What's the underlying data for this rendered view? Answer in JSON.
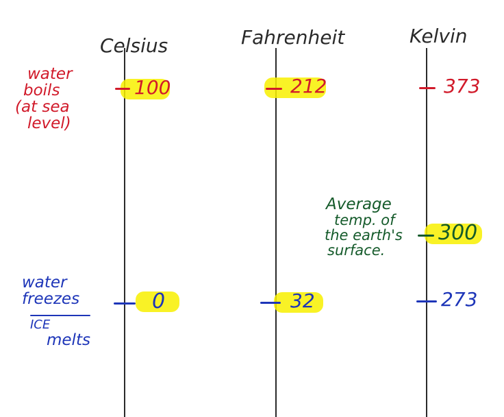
{
  "colors": {
    "ink": "#2a2a2a",
    "red": "#d11a2a",
    "blue": "#1d35b8",
    "green": "#145a2a",
    "highlight": "#f8f000"
  },
  "scales": [
    {
      "id": "celsius",
      "title": "Celsius",
      "boil": "100",
      "freeze": "0"
    },
    {
      "id": "fahrenheit",
      "title": "Fahrenheit",
      "boil": "212",
      "freeze": "32"
    },
    {
      "id": "kelvin",
      "title": "Kelvin",
      "boil": "373",
      "earth": "300",
      "freeze": "273"
    }
  ],
  "notes": {
    "boil": [
      "water",
      "boils",
      "(at sea",
      "level)"
    ],
    "freeze": [
      "water",
      "freezes"
    ],
    "melt": [
      "ICE",
      "melts"
    ],
    "earth": [
      "Average",
      "temp. of",
      "the earth's",
      "surface."
    ]
  }
}
